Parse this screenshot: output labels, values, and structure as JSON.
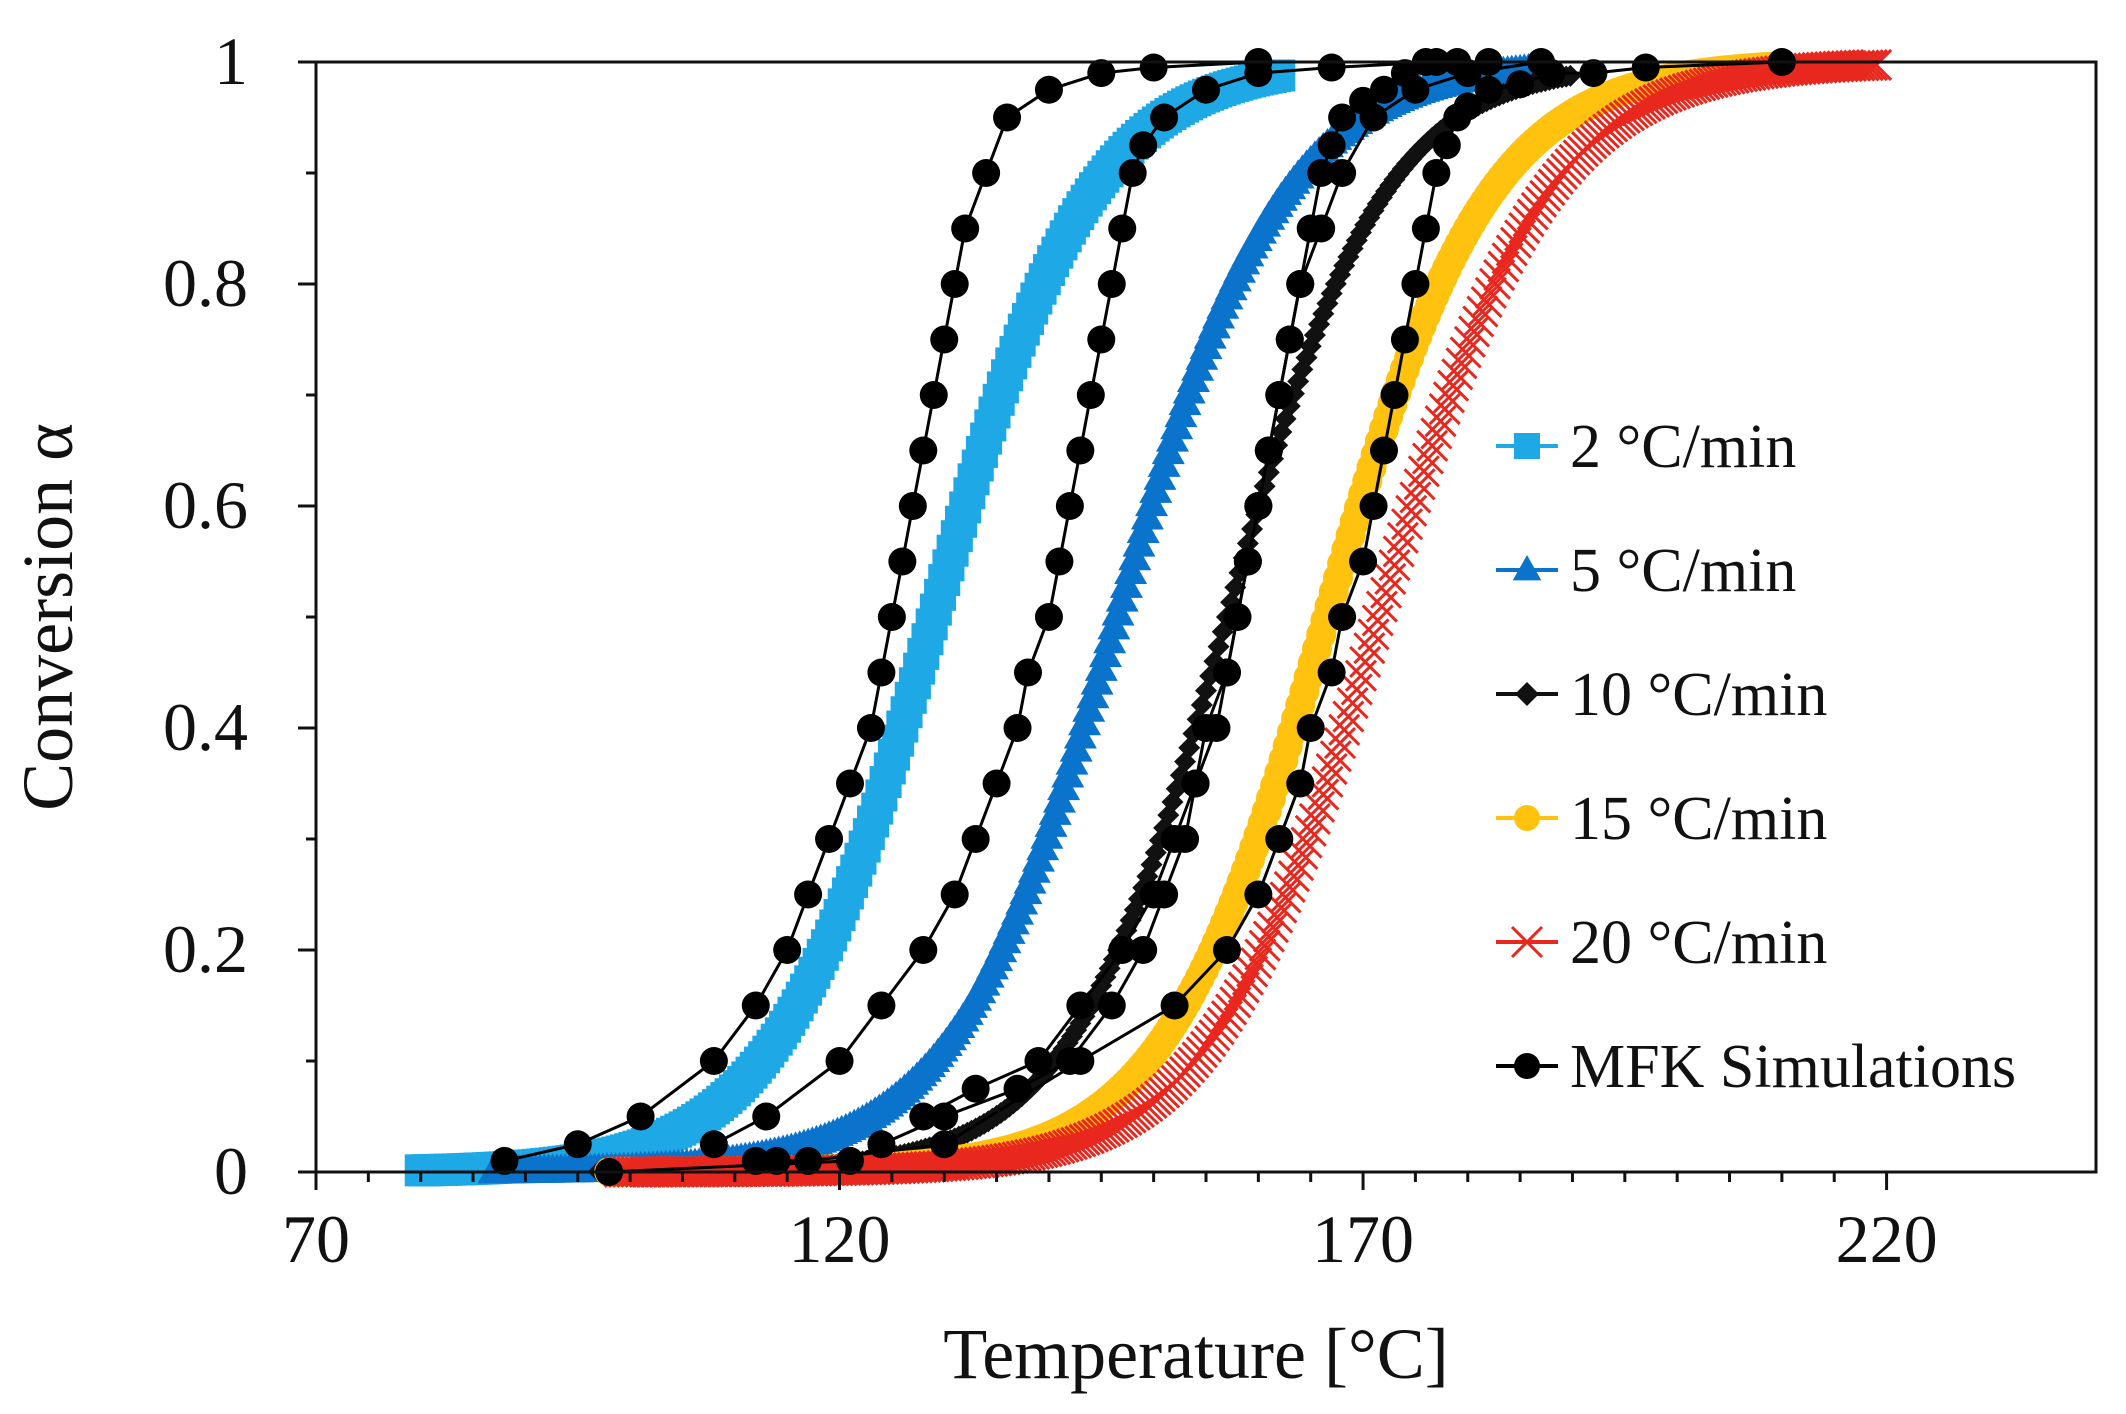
{
  "chart_data": {
    "type": "scatter",
    "title": "",
    "xlabel": "Temperature [°C]",
    "ylabel": "Conversion α",
    "xlim": [
      70,
      240
    ],
    "ylim": [
      0,
      1
    ],
    "xticks": [
      70,
      120,
      170,
      220
    ],
    "xtick_labels": [
      "70",
      "120",
      "170",
      "220"
    ],
    "x_minor_step": 5,
    "yticks": [
      0,
      0.2,
      0.4,
      0.6,
      0.8,
      1
    ],
    "ytick_labels": [
      "0",
      "0.2",
      "0.4",
      "0.6",
      "0.8",
      "1"
    ],
    "y_minor_step": 0.1,
    "grid": false,
    "legend_position": "right",
    "series": [
      {
        "name": "2 °C/min",
        "marker": "square",
        "color": "#1EA8E6",
        "x_start": 80,
        "x_end": 162,
        "midpoint_c": 129.0,
        "width_c": 7.5
      },
      {
        "name": "5 °C/min",
        "marker": "triangle",
        "color": "#0A73CC",
        "x_start": 87,
        "x_end": 188,
        "midpoint_c": 146.5,
        "width_c": 8.0
      },
      {
        "name": "10 °C/min",
        "marker": "diamond",
        "color": "#111111",
        "x_start": 97,
        "x_end": 190,
        "midpoint_c": 157.0,
        "width_c": 7.5
      },
      {
        "name": "15 °C/min",
        "marker": "circle",
        "color": "#FFC20E",
        "x_start": 98,
        "x_end": 210,
        "midpoint_c": 166.5,
        "width_c": 7.8
      },
      {
        "name": "20 °C/min",
        "marker": "x",
        "color": "#E8281E",
        "x_start": 99,
        "x_end": 219,
        "midpoint_c": 171.5,
        "width_c": 8.0
      },
      {
        "name": "MFK Simulations",
        "marker": "circle",
        "color": "#000000",
        "curves": [
          {
            "x": [
              88,
              95,
              101,
              108,
              112,
              115,
              117,
              119,
              121,
              123,
              124,
              125,
              126,
              127,
              128,
              129,
              130,
              131,
              132,
              134,
              136,
              140,
              145,
              150,
              160
            ],
            "y": [
              0.01,
              0.025,
              0.05,
              0.1,
              0.15,
              0.2,
              0.25,
              0.3,
              0.35,
              0.4,
              0.45,
              0.5,
              0.55,
              0.6,
              0.65,
              0.7,
              0.75,
              0.8,
              0.85,
              0.9,
              0.95,
              0.975,
              0.99,
              0.995,
              1.0
            ]
          },
          {
            "x": [
              108,
              113,
              120,
              124,
              128,
              131,
              133,
              135,
              137,
              138,
              140,
              141,
              142,
              143,
              144,
              145,
              146,
              147,
              148,
              149,
              151,
              155,
              160,
              167,
              177
            ],
            "y": [
              0.025,
              0.05,
              0.1,
              0.15,
              0.2,
              0.25,
              0.3,
              0.35,
              0.4,
              0.45,
              0.5,
              0.55,
              0.6,
              0.65,
              0.7,
              0.75,
              0.8,
              0.85,
              0.9,
              0.925,
              0.95,
              0.975,
              0.99,
              0.995,
              1.0
            ]
          },
          {
            "x": [
              128,
              133,
              139,
              143,
              147,
              150,
              152,
              154,
              155,
              157,
              158,
              159,
              160,
              161,
              162,
              163,
              164,
              166,
              168,
              171,
              175,
              180,
              187
            ],
            "y": [
              0.05,
              0.075,
              0.1,
              0.15,
              0.2,
              0.25,
              0.3,
              0.35,
              0.4,
              0.45,
              0.5,
              0.55,
              0.6,
              0.65,
              0.7,
              0.75,
              0.8,
              0.85,
              0.9,
              0.95,
              0.975,
              0.99,
              1.0
            ]
          },
          {
            "x": [
              98,
              121,
              124,
              130,
              137,
              142,
              146,
              149,
              151,
              153,
              154,
              156,
              157,
              158,
              159,
              160,
              161,
              162,
              163,
              164,
              165,
              166,
              167,
              168,
              170,
              172,
              174,
              176,
              179,
              182
            ],
            "y": [
              0.0,
              0.01,
              0.025,
              0.05,
              0.075,
              0.1,
              0.15,
              0.2,
              0.25,
              0.3,
              0.35,
              0.4,
              0.45,
              0.5,
              0.55,
              0.6,
              0.65,
              0.7,
              0.75,
              0.8,
              0.85,
              0.9,
              0.925,
              0.95,
              0.965,
              0.975,
              0.99,
              1.0,
              1.0,
              1.0
            ]
          },
          {
            "x": [
              112,
              114,
              117,
              130,
              143,
              152,
              157,
              160,
              162,
              164,
              165,
              167,
              168,
              170,
              171,
              172,
              173,
              174,
              175,
              176,
              177,
              178,
              179,
              180,
              182,
              185,
              188,
              192,
              197,
              210
            ],
            "y": [
              0.01,
              0.01,
              0.01,
              0.025,
              0.1,
              0.15,
              0.2,
              0.25,
              0.3,
              0.35,
              0.4,
              0.45,
              0.5,
              0.55,
              0.6,
              0.65,
              0.7,
              0.75,
              0.8,
              0.85,
              0.9,
              0.925,
              0.95,
              0.96,
              0.975,
              0.98,
              0.99,
              0.99,
              0.995,
              1.0
            ]
          }
        ]
      }
    ]
  }
}
